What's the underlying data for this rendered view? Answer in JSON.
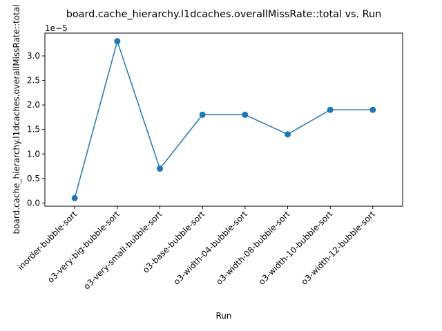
{
  "chart_data": {
    "type": "line",
    "title": "board.cache_hierarchy.l1dcaches.overallMissRate::total vs. Run",
    "xlabel": "Run",
    "ylabel": "board.cache_hierarchy.l1dcaches.overallMissRate::total",
    "y_offset_label": "1e−5",
    "categories": [
      "inorder-bubble-sort",
      "o3-very-big-bubble-sort",
      "o3-very-small-bubble-sort",
      "o3-base-bubble-sort",
      "o3-width-04-bubble-sort",
      "o3-width-08-bubble-sort",
      "o3-width-10-bubble-sort",
      "o3-width-12-bubble-sort"
    ],
    "values": [
      1e-06,
      3.3e-05,
      7e-06,
      1.8e-05,
      1.8e-05,
      1.4e-05,
      1.9e-05,
      1.9e-05
    ],
    "ylim": [
      -6.5e-07,
      3.465e-05
    ],
    "yticks": [
      0.0,
      0.5,
      1.0,
      1.5,
      2.0,
      2.5,
      3.0
    ],
    "ytick_labels": [
      "0.0",
      "0.5",
      "1.0",
      "1.5",
      "2.0",
      "2.5",
      "3.0"
    ],
    "ytick_scale": 1e-05,
    "grid": false,
    "legend": "none",
    "colors": {
      "line": "#1f77b4",
      "marker": "#1f77b4",
      "axes": "#000000"
    }
  }
}
